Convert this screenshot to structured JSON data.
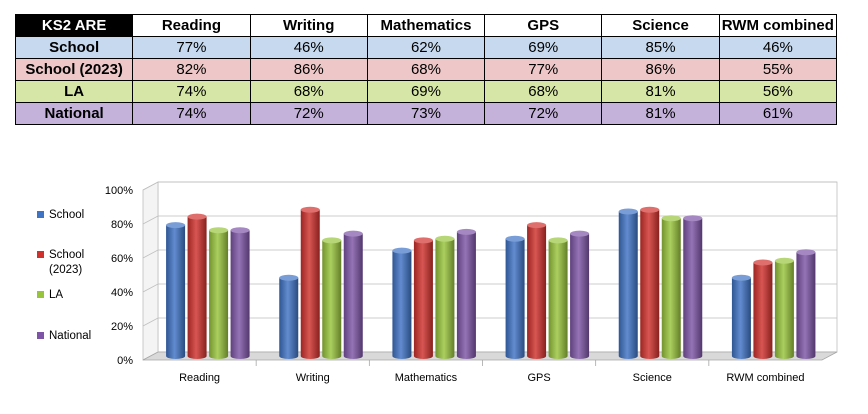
{
  "table": {
    "corner": "KS2 ARE",
    "columns": [
      "Reading",
      "Writing",
      "Mathematics",
      "GPS",
      "Science",
      "RWM combined"
    ],
    "rows": [
      {
        "label": "School",
        "color": "#c6d9ee",
        "values": [
          "77%",
          "46%",
          "62%",
          "69%",
          "85%",
          "46%"
        ]
      },
      {
        "label": "School (2023)",
        "color": "#eec8c8",
        "values": [
          "82%",
          "86%",
          "68%",
          "77%",
          "86%",
          "55%"
        ]
      },
      {
        "label": "LA",
        "color": "#d6e6a6",
        "values": [
          "74%",
          "68%",
          "69%",
          "68%",
          "81%",
          "56%"
        ]
      },
      {
        "label": "National",
        "color": "#c4b2da",
        "values": [
          "74%",
          "72%",
          "73%",
          "72%",
          "81%",
          "61%"
        ]
      }
    ]
  },
  "chart_data": {
    "type": "bar",
    "categories": [
      "Reading",
      "Writing",
      "Mathematics",
      "GPS",
      "Science",
      "RWM combined"
    ],
    "series": [
      {
        "name": "School",
        "color": "#3f73c4",
        "values": [
          77,
          46,
          62,
          69,
          85,
          46
        ]
      },
      {
        "name": "School (2023)",
        "color": "#d0312d",
        "values": [
          82,
          86,
          68,
          77,
          86,
          55
        ]
      },
      {
        "name": "LA",
        "color": "#98c43c",
        "values": [
          74,
          68,
          69,
          68,
          81,
          56
        ]
      },
      {
        "name": "National",
        "color": "#7e55a6",
        "values": [
          74,
          72,
          73,
          72,
          81,
          61
        ]
      }
    ],
    "ylim": [
      0,
      100
    ],
    "yticks": [
      "0%",
      "20%",
      "40%",
      "60%",
      "80%",
      "100%"
    ],
    "grid": true,
    "legend": "left",
    "title": "",
    "xlabel": "",
    "ylabel": ""
  }
}
